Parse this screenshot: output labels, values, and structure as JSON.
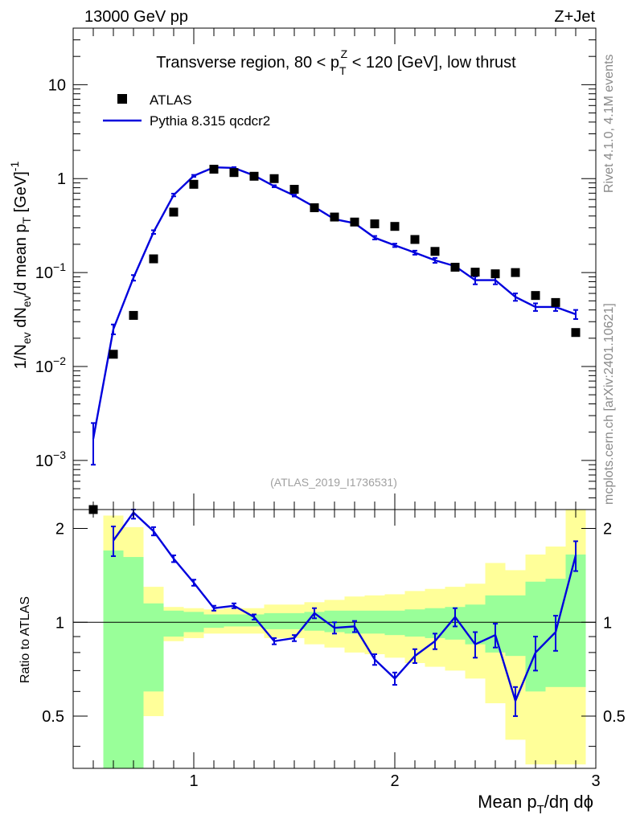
{
  "header": {
    "energy_label": "13000 GeV pp",
    "process_label": "Z+Jet",
    "side_label_rivet": "Rivet 4.1.0,  4.1M events",
    "side_label_site": "mcplots.cern.ch [arXiv:2401.10621]"
  },
  "colors": {
    "mc_line": "#0000dd",
    "data_marker": "#000000",
    "band_inner": "#99ff99",
    "band_outer": "#ffff99"
  },
  "chart_data": [
    {
      "type": "scatter",
      "panel": "main",
      "title": "Transverse region, 80 < p_T^Z < 120 [GeV], low thrust",
      "title_parts": {
        "prefix": "Transverse region, 80 < p",
        "sub": "T",
        "sup": "Z",
        "suffix": " < 120 [GeV], low thrust"
      },
      "ylabel": "1/N_ev dN_ev/d mean p_T [GeV]^-1",
      "yscale": "log",
      "ylim": [
        0.0003,
        40
      ],
      "xlim": [
        0.4,
        3.0
      ],
      "watermark": "(ATLAS_2019_I1736531)",
      "legend": {
        "position": "top-left",
        "entries": [
          "ATLAS",
          "Pythia 8.315 qcdcr2"
        ]
      },
      "ytick_labels": [
        "10^-3",
        "10^-2",
        "10^-1",
        "1",
        "10"
      ],
      "series": [
        {
          "name": "ATLAS",
          "style": "markers",
          "x": [
            0.5,
            0.6,
            0.7,
            0.8,
            0.9,
            1.0,
            1.1,
            1.2,
            1.3,
            1.4,
            1.5,
            1.6,
            1.7,
            1.8,
            1.9,
            2.0,
            2.1,
            2.2,
            2.3,
            2.4,
            2.5,
            2.6,
            2.7,
            2.8,
            2.9
          ],
          "y": [
            0.0003,
            0.0135,
            0.035,
            0.14,
            0.44,
            0.87,
            1.26,
            1.16,
            1.06,
            1.0,
            0.77,
            0.49,
            0.39,
            0.345,
            0.33,
            0.31,
            0.225,
            0.168,
            0.114,
            0.101,
            0.097,
            0.1,
            0.057,
            0.048,
            0.023
          ]
        },
        {
          "name": "Pythia 8.315 qcdcr2",
          "style": "line",
          "x": [
            0.5,
            0.6,
            0.7,
            0.8,
            0.9,
            1.0,
            1.1,
            1.2,
            1.3,
            1.4,
            1.5,
            1.6,
            1.7,
            1.8,
            1.9,
            2.0,
            2.1,
            2.2,
            2.3,
            2.4,
            2.5,
            2.6,
            2.7,
            2.8,
            2.9
          ],
          "y": [
            0.0017,
            0.025,
            0.088,
            0.27,
            0.67,
            1.07,
            1.32,
            1.3,
            1.08,
            0.83,
            0.66,
            0.5,
            0.37,
            0.335,
            0.235,
            0.195,
            0.163,
            0.135,
            0.117,
            0.083,
            0.083,
            0.055,
            0.043,
            0.043,
            0.036
          ],
          "yerr": [
            0.0008,
            0.003,
            0.006,
            0.012,
            0.022,
            0.025,
            0.025,
            0.025,
            0.02,
            0.02,
            0.015,
            0.015,
            0.012,
            0.012,
            0.01,
            0.008,
            0.008,
            0.008,
            0.007,
            0.008,
            0.008,
            0.005,
            0.004,
            0.004,
            0.004
          ]
        }
      ]
    },
    {
      "type": "line",
      "panel": "ratio",
      "ylabel": "Ratio to ATLAS",
      "xlabel": "Mean p_T/dη dϕ",
      "xlabel_parts": {
        "prefix": "Mean p",
        "sub": "T",
        "suffix": "/dη dϕ"
      },
      "xlim": [
        0.4,
        3.0
      ],
      "ylim": [
        0.34,
        2.3
      ],
      "reference_line": 1,
      "xtick_labels": [
        "1",
        "2",
        "3"
      ],
      "ytick_labels": [
        "0.5",
        "1",
        "2"
      ],
      "bands": {
        "x_edges": [
          0.55,
          0.65,
          0.75,
          0.85,
          0.95,
          1.05,
          1.15,
          1.25,
          1.35,
          1.45,
          1.55,
          1.65,
          1.75,
          1.85,
          1.95,
          2.05,
          2.15,
          2.25,
          2.35,
          2.45,
          2.55,
          2.65,
          2.75,
          2.85,
          2.95
        ],
        "inner": [
          [
            0.0,
            1.7
          ],
          [
            0.0,
            1.62
          ],
          [
            0.6,
            1.15
          ],
          [
            0.9,
            1.09
          ],
          [
            0.93,
            1.08
          ],
          [
            0.96,
            1.06
          ],
          [
            0.97,
            1.06
          ],
          [
            0.97,
            1.06
          ],
          [
            0.95,
            1.07
          ],
          [
            0.95,
            1.07
          ],
          [
            0.94,
            1.08
          ],
          [
            0.93,
            1.09
          ],
          [
            0.92,
            1.09
          ],
          [
            0.92,
            1.09
          ],
          [
            0.91,
            1.09
          ],
          [
            0.9,
            1.1
          ],
          [
            0.89,
            1.11
          ],
          [
            0.88,
            1.12
          ],
          [
            0.85,
            1.14
          ],
          [
            0.8,
            1.22
          ],
          [
            0.78,
            1.22
          ],
          [
            0.6,
            1.35
          ],
          [
            0.62,
            1.38
          ],
          [
            0.62,
            1.65
          ]
        ],
        "outer": [
          [
            0.0,
            2.2
          ],
          [
            0.35,
            2.02
          ],
          [
            0.5,
            1.3
          ],
          [
            0.87,
            1.12
          ],
          [
            0.89,
            1.11
          ],
          [
            0.92,
            1.1
          ],
          [
            0.92,
            1.11
          ],
          [
            0.92,
            1.11
          ],
          [
            0.89,
            1.14
          ],
          [
            0.89,
            1.14
          ],
          [
            0.85,
            1.16
          ],
          [
            0.83,
            1.18
          ],
          [
            0.8,
            1.21
          ],
          [
            0.79,
            1.22
          ],
          [
            0.77,
            1.23
          ],
          [
            0.74,
            1.26
          ],
          [
            0.72,
            1.28
          ],
          [
            0.7,
            1.3
          ],
          [
            0.66,
            1.33
          ],
          [
            0.55,
            1.55
          ],
          [
            0.42,
            1.47
          ],
          [
            0.35,
            1.65
          ],
          [
            0.35,
            1.75
          ],
          [
            0.35,
            2.4
          ]
        ]
      },
      "series": [
        {
          "name": "Pythia 8.315 qcdcr2 / ATLAS",
          "x": [
            0.6,
            0.7,
            0.8,
            0.9,
            1.0,
            1.1,
            1.2,
            1.3,
            1.4,
            1.5,
            1.6,
            1.7,
            1.8,
            1.9,
            2.0,
            2.1,
            2.2,
            2.3,
            2.4,
            2.5,
            2.6,
            2.7,
            2.8,
            2.9
          ],
          "y": [
            1.83,
            2.25,
            1.96,
            1.6,
            1.34,
            1.11,
            1.13,
            1.04,
            0.87,
            0.89,
            1.07,
            0.96,
            0.97,
            0.76,
            0.66,
            0.78,
            0.87,
            1.04,
            0.85,
            0.91,
            0.56,
            0.8,
            0.93,
            1.64
          ],
          "yerr": [
            0.2,
            0.1,
            0.06,
            0.04,
            0.03,
            0.02,
            0.02,
            0.02,
            0.02,
            0.02,
            0.04,
            0.04,
            0.04,
            0.03,
            0.03,
            0.04,
            0.05,
            0.07,
            0.08,
            0.08,
            0.06,
            0.1,
            0.12,
            0.18
          ]
        }
      ]
    }
  ]
}
